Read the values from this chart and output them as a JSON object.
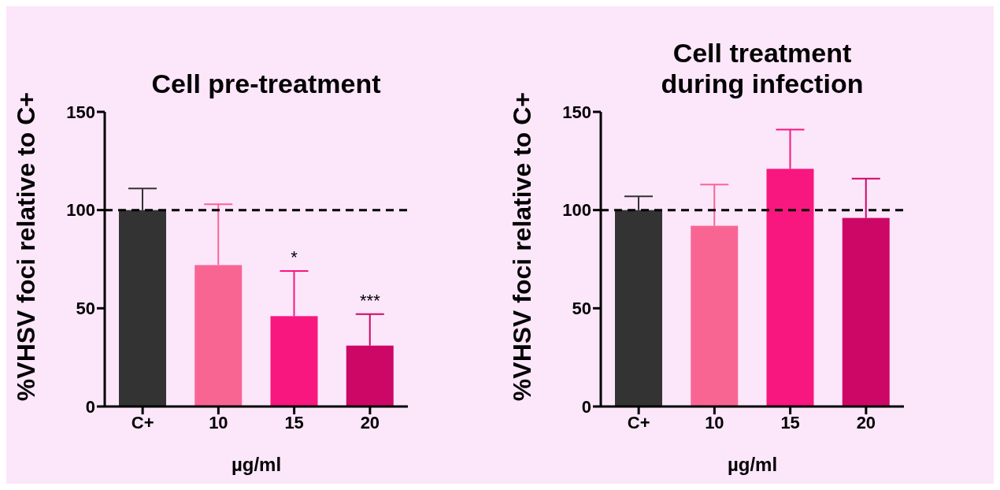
{
  "chart_data": [
    {
      "type": "bar",
      "title": "Cell pre-treatment",
      "xlabel": "µg/ml",
      "ylabel": "%VHSV foci relative to C+",
      "categories": [
        "C+",
        "10",
        "15",
        "20"
      ],
      "values": [
        100,
        72,
        46,
        31
      ],
      "colors": [
        "#333333",
        "#f96593",
        "#f7177f",
        "#cc0766"
      ],
      "errors": [
        [
          100,
          111
        ],
        [
          72,
          103
        ],
        [
          46,
          69
        ],
        [
          31,
          47
        ]
      ],
      "ylim": [
        0,
        150
      ],
      "yticks": [
        0,
        50,
        100,
        150
      ],
      "grid": false,
      "ref_lines": [
        {
          "axis": "y",
          "value": 100,
          "line_style": "dashed",
          "color": "#000000"
        }
      ],
      "annotations": [
        {
          "text": "*",
          "x": "15",
          "y": 69
        },
        {
          "text": "***",
          "x": "20",
          "y": 47
        }
      ]
    },
    {
      "type": "bar",
      "title": "Cell treatment during infection",
      "xlabel": "µg/ml",
      "ylabel": "%VHSV foci relative to C+",
      "categories": [
        "C+",
        "10",
        "15",
        "20"
      ],
      "values": [
        100,
        92,
        121,
        96
      ],
      "colors": [
        "#333333",
        "#f96593",
        "#f7177f",
        "#cc0766"
      ],
      "errors": [
        [
          100,
          107
        ],
        [
          92,
          113
        ],
        [
          121,
          141
        ],
        [
          96,
          116
        ]
      ],
      "ylim": [
        0,
        150
      ],
      "yticks": [
        0,
        50,
        100,
        150
      ],
      "grid": false,
      "ref_lines": [
        {
          "axis": "y",
          "value": 100,
          "line_style": "dashed",
          "color": "#000000"
        }
      ]
    }
  ]
}
